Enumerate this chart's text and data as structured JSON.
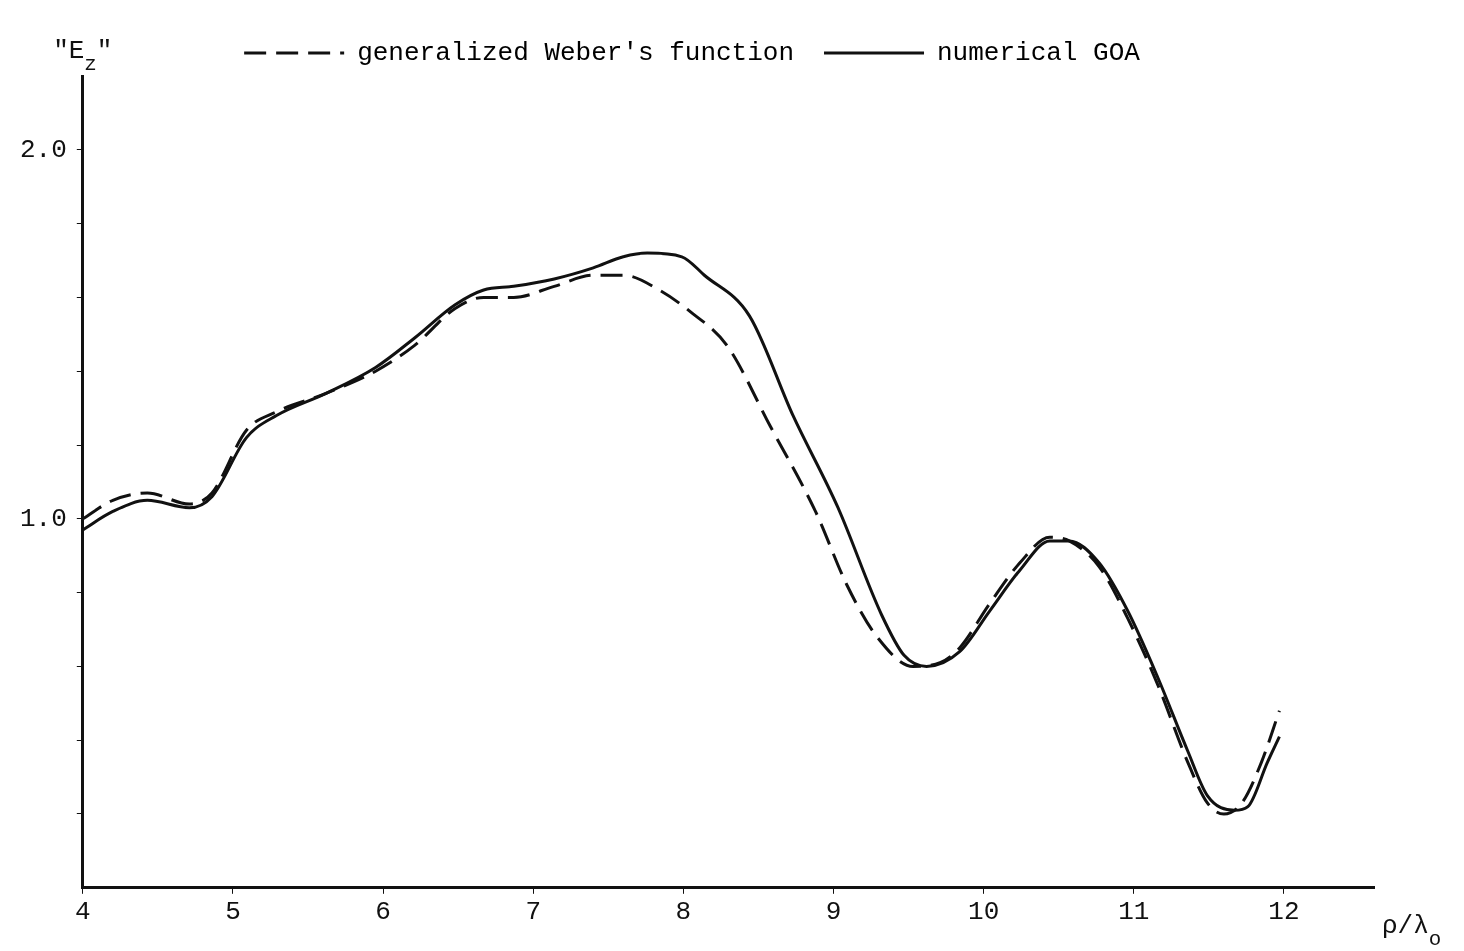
{
  "chart_data": {
    "type": "line",
    "xlabel": "ρ/λ$_{o}$",
    "ylabel": "\"E$_{z}$\"",
    "xlim": [
      4,
      12.6
    ],
    "xticks": [
      4,
      5,
      6,
      7,
      8,
      9,
      10,
      11,
      12
    ],
    "ylim": [
      0,
      2.2
    ],
    "yticks": [
      {
        "value": 0.2,
        "label": null
      },
      {
        "value": 0.4,
        "label": null
      },
      {
        "value": 0.6,
        "label": null
      },
      {
        "value": 0.8,
        "label": null
      },
      {
        "value": 1.0,
        "label": "1.0"
      },
      {
        "value": 1.2,
        "label": null
      },
      {
        "value": 1.4,
        "label": null
      },
      {
        "value": 1.6,
        "label": null
      },
      {
        "value": 1.8,
        "label": null
      },
      {
        "value": 2.0,
        "label": "2.0"
      }
    ],
    "legend": "top",
    "marker": "none",
    "series": [
      {
        "name": "generalized Weber's function",
        "color": "#111111",
        "line_style": "dashed",
        "x": [
          4.0,
          4.2,
          4.43,
          4.71,
          4.86,
          5.09,
          5.29,
          5.62,
          5.95,
          6.21,
          6.48,
          6.67,
          6.87,
          7.14,
          7.4,
          7.6,
          7.84,
          8.05,
          8.29,
          8.58,
          8.88,
          9.09,
          9.29,
          9.53,
          9.71,
          9.84,
          10.04,
          10.24,
          10.44,
          10.57,
          10.77,
          10.96,
          11.16,
          11.36,
          11.49,
          11.6,
          11.72,
          11.85,
          11.97
        ],
        "values": [
          1.0,
          1.05,
          1.07,
          1.04,
          1.07,
          1.24,
          1.29,
          1.34,
          1.4,
          1.47,
          1.57,
          1.6,
          1.6,
          1.63,
          1.66,
          1.66,
          1.62,
          1.56,
          1.47,
          1.25,
          1.02,
          0.82,
          0.68,
          0.6,
          0.61,
          0.65,
          0.77,
          0.88,
          0.95,
          0.94,
          0.87,
          0.73,
          0.55,
          0.34,
          0.23,
          0.2,
          0.23,
          0.34,
          0.48
        ]
      },
      {
        "name": "numerical GOA",
        "color": "#111111",
        "line_style": "solid",
        "x": [
          4.0,
          4.2,
          4.43,
          4.71,
          4.86,
          5.09,
          5.29,
          5.62,
          5.95,
          6.21,
          6.48,
          6.67,
          6.87,
          7.14,
          7.4,
          7.6,
          7.76,
          7.99,
          8.14,
          8.44,
          8.73,
          9.03,
          9.32,
          9.47,
          9.62,
          9.84,
          10.04,
          10.24,
          10.44,
          10.57,
          10.77,
          10.96,
          11.16,
          11.36,
          11.49,
          11.67,
          11.76,
          11.89,
          11.97
        ],
        "values": [
          0.97,
          1.02,
          1.05,
          1.03,
          1.06,
          1.22,
          1.28,
          1.34,
          1.41,
          1.49,
          1.58,
          1.62,
          1.63,
          1.65,
          1.68,
          1.71,
          1.72,
          1.71,
          1.66,
          1.55,
          1.28,
          1.03,
          0.74,
          0.63,
          0.6,
          0.64,
          0.75,
          0.86,
          0.94,
          0.94,
          0.88,
          0.75,
          0.57,
          0.37,
          0.25,
          0.21,
          0.22,
          0.34,
          0.41
        ]
      }
    ]
  }
}
